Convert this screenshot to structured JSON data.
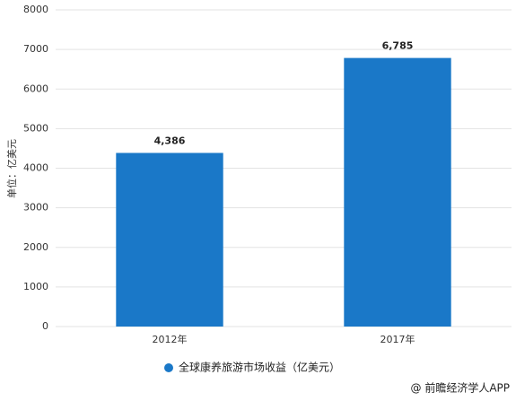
{
  "chart_data": {
    "type": "bar",
    "y_label": "单位：亿美元",
    "categories": [
      "2012年",
      "2017年"
    ],
    "series": [
      {
        "name": "全球康养旅游市场收益（亿美元）",
        "color": "#1a78c8",
        "values": [
          4386,
          6785
        ],
        "value_labels": [
          "4,386",
          "6,785"
        ]
      }
    ],
    "ylim": [
      0,
      8000
    ],
    "yticks": [
      0,
      1000,
      2000,
      3000,
      4000,
      5000,
      6000,
      7000,
      8000
    ],
    "grid": true,
    "legend": "bottom",
    "credit": "@ 前瞻经济学人APP"
  }
}
